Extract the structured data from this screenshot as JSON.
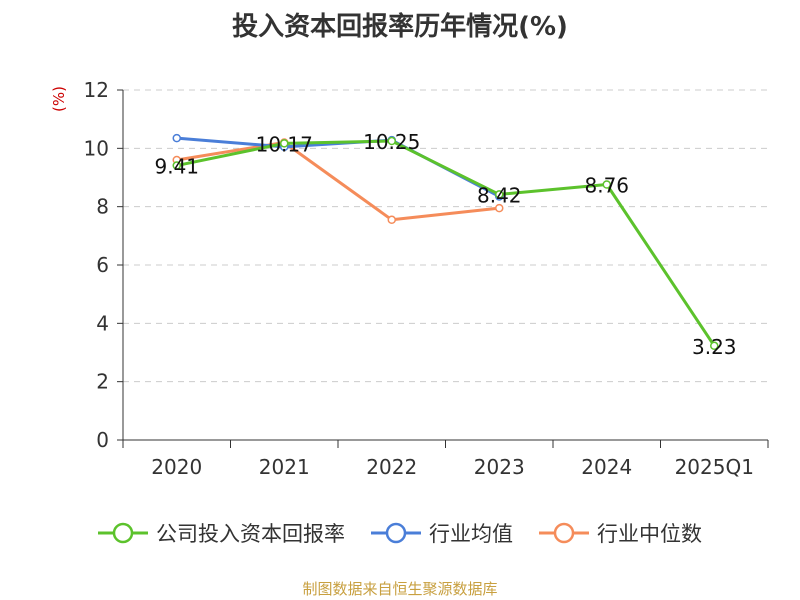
{
  "chart_data": {
    "type": "line",
    "title": "投入资本回报率历年情况(%)",
    "unit_label": "(%)",
    "categories": [
      "2020",
      "2021",
      "2022",
      "2023",
      "2024",
      "2025Q1"
    ],
    "ylim": [
      0,
      12
    ],
    "yticks": [
      0,
      2,
      4,
      6,
      8,
      10,
      12
    ],
    "grid": true,
    "legend_position": "bottom",
    "series": [
      {
        "name": "公司投入资本回报率",
        "color": "#5cc22c",
        "values": [
          9.41,
          10.17,
          10.25,
          8.42,
          8.76,
          3.23
        ],
        "show_labels": true
      },
      {
        "name": "行业均值",
        "color": "#4a7ed8",
        "values": [
          10.35,
          10.05,
          10.28,
          8.35,
          null,
          null
        ],
        "show_labels": false
      },
      {
        "name": "行业中位数",
        "color": "#f58c5a",
        "values": [
          9.6,
          10.2,
          7.55,
          7.95,
          null,
          null
        ],
        "show_labels": false
      }
    ],
    "data_labels": [
      "9.41",
      "10.17",
      "10.25",
      "8.42",
      "8.76",
      "3.23"
    ]
  },
  "source": "制图数据来自恒生聚源数据库"
}
